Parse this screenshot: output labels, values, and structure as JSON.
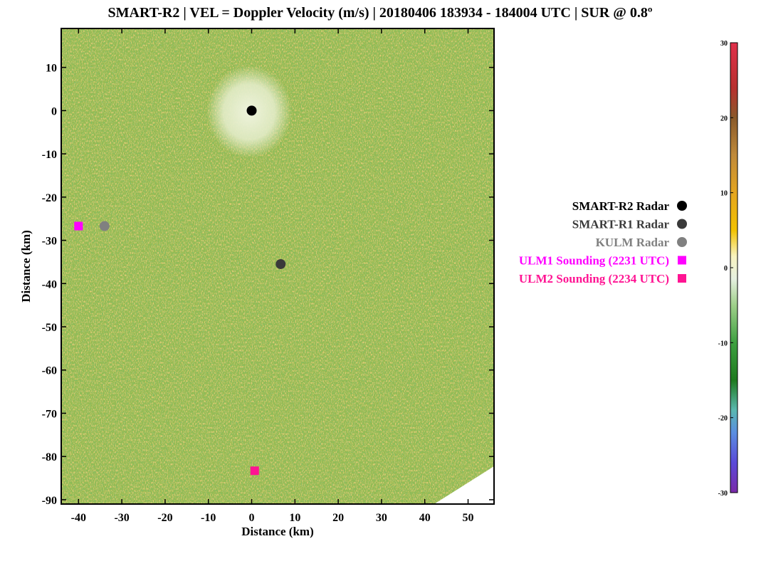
{
  "chart_data": {
    "type": "heatmap",
    "title": "SMART-R2 | VEL = Doppler Velocity (m/s) | 20180406 183934 - 184004 UTC | SUR @ 0.8º",
    "xlabel": "Distance (km)",
    "ylabel": "Distance (km)",
    "xlim": [
      -44,
      56
    ],
    "ylim": [
      -91,
      19
    ],
    "x_ticks": [
      "-40",
      "-30",
      "-20",
      "-10",
      "0",
      "10",
      "20",
      "30",
      "40",
      "50"
    ],
    "y_ticks": [
      "10",
      "0",
      "-10",
      "-20",
      "-30",
      "-40",
      "-50",
      "-60",
      "-70",
      "-80",
      "-90"
    ],
    "x_tick_values": [
      -40,
      -30,
      -20,
      -10,
      0,
      10,
      20,
      30,
      40,
      50
    ],
    "y_tick_values": [
      10,
      0,
      -10,
      -20,
      -30,
      -40,
      -50,
      -60,
      -70,
      -80,
      -90
    ],
    "field_description_colors": {
      "background_green": "#8fb84a",
      "clutter_center": "#e8efd4",
      "speckle_orange": "#d9a83a"
    },
    "markers": [
      {
        "name": "smart-r2-radar",
        "label": "SMART-R2 Radar",
        "shape": "circle",
        "color": "#000000",
        "x": 0,
        "y": 0
      },
      {
        "name": "smart-r1-radar",
        "label": "SMART-R1 Radar",
        "shape": "circle",
        "color": "#3a3a3a",
        "x": 6.7,
        "y": -35.5
      },
      {
        "name": "kulm-radar",
        "label": "KULM Radar",
        "shape": "circle",
        "color": "#808080",
        "x": -34,
        "y": -26.7
      },
      {
        "name": "ulm1-sounding",
        "label": "ULM1 Sounding (2231 UTC)",
        "shape": "square",
        "color": "#ff00ff",
        "x": -40,
        "y": -26.7
      },
      {
        "name": "ulm2-sounding",
        "label": "ULM2 Sounding (2234 UTC)",
        "shape": "square",
        "color": "#ff1493",
        "x": 0.7,
        "y": -83.3
      }
    ],
    "legend_placement": "right",
    "colorbar": {
      "min": -30,
      "max": 30,
      "ticks": [
        "30",
        "20",
        "10",
        "0",
        "-10",
        "-20",
        "-30"
      ],
      "tick_values": [
        30,
        20,
        10,
        0,
        -10,
        -20,
        -30
      ],
      "stops": [
        {
          "value": 30,
          "color": "#e0304a"
        },
        {
          "value": 24,
          "color": "#b8302f"
        },
        {
          "value": 20,
          "color": "#8a5a2a"
        },
        {
          "value": 15,
          "color": "#c08a3a"
        },
        {
          "value": 10,
          "color": "#e4a520"
        },
        {
          "value": 5,
          "color": "#f2c200"
        },
        {
          "value": 1.5,
          "color": "#f8f3c0"
        },
        {
          "value": -1.5,
          "color": "#e6f0e0"
        },
        {
          "value": -5,
          "color": "#9fd08a"
        },
        {
          "value": -10,
          "color": "#3ea040"
        },
        {
          "value": -15,
          "color": "#1e7a1e"
        },
        {
          "value": -19,
          "color": "#5ab8b0"
        },
        {
          "value": -22,
          "color": "#5a8ee0"
        },
        {
          "value": -26,
          "color": "#5a4ad8"
        },
        {
          "value": -30,
          "color": "#7a2aa8"
        }
      ]
    }
  }
}
